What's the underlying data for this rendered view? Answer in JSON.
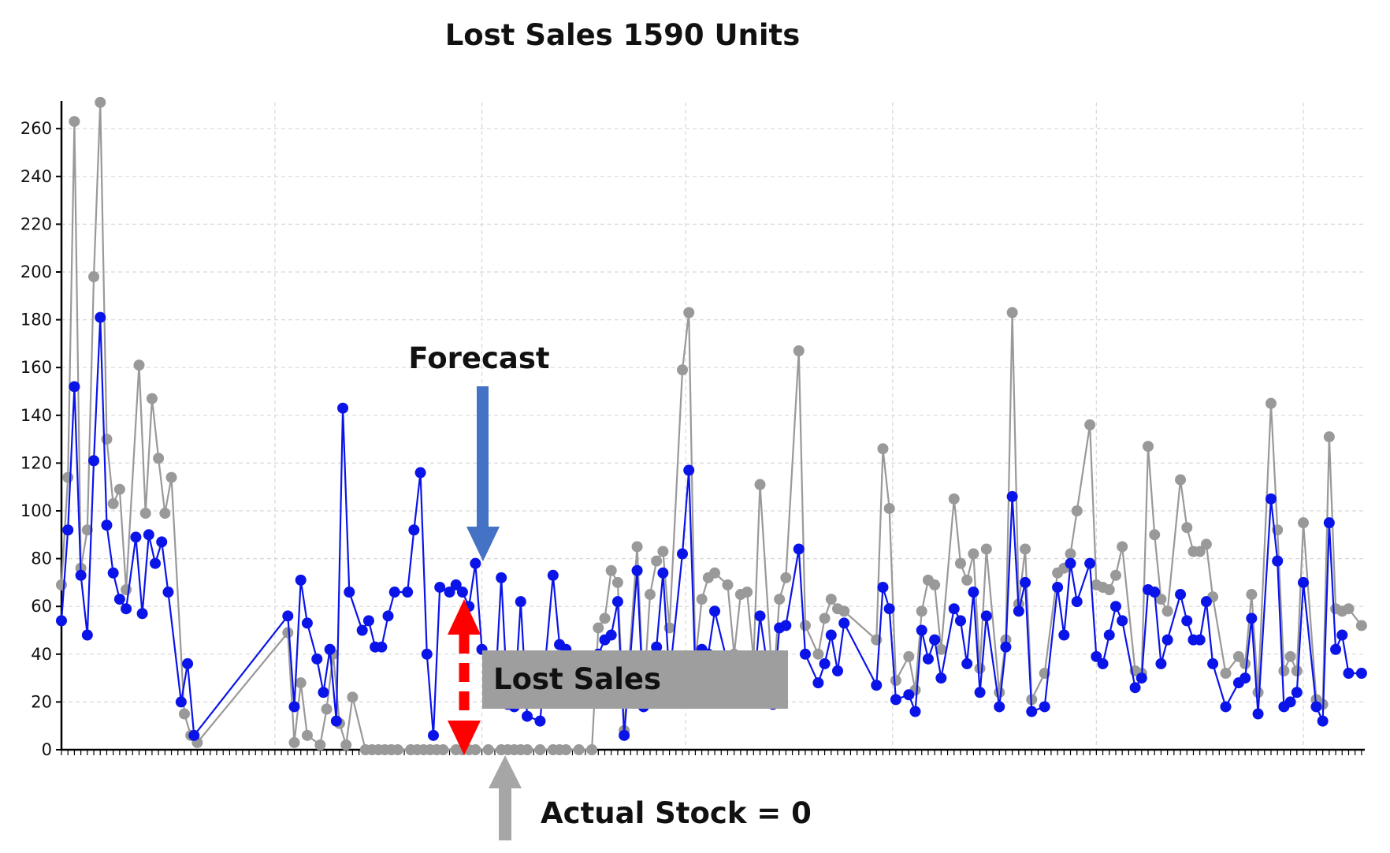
{
  "chart_data": {
    "type": "line",
    "title": "Lost Sales 1590 Units",
    "xlabel": "",
    "ylabel": "",
    "ylim": [
      0,
      270
    ],
    "yticks": [
      0,
      20,
      40,
      60,
      80,
      100,
      120,
      140,
      160,
      180,
      200,
      220,
      240,
      260
    ],
    "grid": true,
    "series": [
      {
        "color": "#0a14e8",
        "points": [
          [
            0,
            54
          ],
          [
            2,
            92
          ],
          [
            4,
            152
          ],
          [
            6,
            73
          ],
          [
            8,
            48
          ],
          [
            10,
            121
          ],
          [
            12,
            181
          ],
          [
            14,
            94
          ],
          [
            16,
            74
          ],
          [
            18,
            63
          ],
          [
            20,
            59
          ],
          [
            23,
            89
          ],
          [
            25,
            57
          ],
          [
            27,
            90
          ],
          [
            29,
            78
          ],
          [
            31,
            87
          ],
          [
            33,
            66
          ],
          [
            37,
            20
          ],
          [
            39,
            36
          ],
          [
            41,
            6
          ],
          [
            70,
            56
          ],
          [
            72,
            18
          ],
          [
            74,
            71
          ],
          [
            76,
            53
          ],
          [
            79,
            38
          ],
          [
            81,
            24
          ],
          [
            83,
            42
          ],
          [
            85,
            12
          ],
          [
            87,
            143
          ],
          [
            89,
            66
          ],
          [
            93,
            50
          ],
          [
            95,
            54
          ],
          [
            97,
            43
          ],
          [
            99,
            43
          ],
          [
            101,
            56
          ],
          [
            103,
            66
          ],
          [
            107,
            66
          ],
          [
            109,
            92
          ],
          [
            111,
            116
          ],
          [
            113,
            40
          ],
          [
            115,
            6
          ],
          [
            117,
            68
          ],
          [
            120,
            66
          ],
          [
            122,
            69
          ],
          [
            124,
            66
          ],
          [
            126,
            60
          ],
          [
            128,
            78
          ],
          [
            130,
            42
          ],
          [
            134,
            22
          ],
          [
            136,
            72
          ],
          [
            138,
            19
          ],
          [
            140,
            18
          ],
          [
            142,
            62
          ],
          [
            144,
            14
          ],
          [
            148,
            12
          ],
          [
            152,
            73
          ],
          [
            154,
            44
          ],
          [
            156,
            42
          ],
          [
            158,
            36
          ],
          [
            162,
            26
          ],
          [
            166,
            40
          ],
          [
            168,
            46
          ],
          [
            170,
            48
          ],
          [
            172,
            62
          ],
          [
            174,
            6
          ],
          [
            178,
            75
          ],
          [
            180,
            18
          ],
          [
            182,
            36
          ],
          [
            184,
            43
          ],
          [
            186,
            74
          ],
          [
            188,
            30
          ],
          [
            192,
            82
          ],
          [
            194,
            117
          ],
          [
            196,
            32
          ],
          [
            198,
            42
          ],
          [
            200,
            40
          ],
          [
            202,
            58
          ],
          [
            206,
            36
          ],
          [
            208,
            26
          ],
          [
            210,
            36
          ],
          [
            212,
            36
          ],
          [
            214,
            24
          ],
          [
            216,
            56
          ],
          [
            220,
            19
          ],
          [
            222,
            51
          ],
          [
            224,
            52
          ],
          [
            228,
            84
          ],
          [
            230,
            40
          ],
          [
            234,
            28
          ],
          [
            236,
            36
          ],
          [
            238,
            48
          ],
          [
            240,
            33
          ],
          [
            242,
            53
          ],
          [
            252,
            27
          ],
          [
            254,
            68
          ],
          [
            256,
            59
          ],
          [
            258,
            21
          ],
          [
            262,
            23
          ],
          [
            264,
            16
          ],
          [
            266,
            50
          ],
          [
            268,
            38
          ],
          [
            270,
            46
          ],
          [
            272,
            30
          ],
          [
            276,
            59
          ],
          [
            278,
            54
          ],
          [
            280,
            36
          ],
          [
            282,
            66
          ],
          [
            284,
            24
          ],
          [
            286,
            56
          ],
          [
            290,
            18
          ],
          [
            292,
            43
          ],
          [
            294,
            106
          ],
          [
            296,
            58
          ],
          [
            298,
            70
          ],
          [
            300,
            16
          ],
          [
            304,
            18
          ],
          [
            308,
            68
          ],
          [
            310,
            48
          ],
          [
            312,
            78
          ],
          [
            314,
            62
          ],
          [
            318,
            78
          ],
          [
            320,
            39
          ],
          [
            322,
            36
          ],
          [
            324,
            48
          ],
          [
            326,
            60
          ],
          [
            328,
            54
          ],
          [
            332,
            26
          ],
          [
            334,
            30
          ],
          [
            336,
            67
          ],
          [
            338,
            66
          ],
          [
            340,
            36
          ],
          [
            342,
            46
          ],
          [
            346,
            65
          ],
          [
            348,
            54
          ],
          [
            350,
            46
          ],
          [
            352,
            46
          ],
          [
            354,
            62
          ],
          [
            356,
            36
          ],
          [
            360,
            18
          ],
          [
            364,
            28
          ],
          [
            366,
            30
          ],
          [
            368,
            55
          ],
          [
            370,
            15
          ],
          [
            374,
            105
          ],
          [
            376,
            79
          ],
          [
            378,
            18
          ],
          [
            380,
            20
          ],
          [
            382,
            24
          ],
          [
            384,
            70
          ],
          [
            388,
            18
          ],
          [
            390,
            12
          ],
          [
            392,
            95
          ],
          [
            394,
            42
          ],
          [
            396,
            48
          ],
          [
            398,
            32
          ],
          [
            402,
            32
          ]
        ]
      },
      {
        "color": "#999999",
        "points": [
          [
            0,
            69
          ],
          [
            2,
            114
          ],
          [
            4,
            263
          ],
          [
            6,
            76
          ],
          [
            8,
            92
          ],
          [
            10,
            198
          ],
          [
            12,
            271
          ],
          [
            14,
            130
          ],
          [
            16,
            103
          ],
          [
            18,
            109
          ],
          [
            20,
            67
          ],
          [
            24,
            161
          ],
          [
            26,
            99
          ],
          [
            28,
            147
          ],
          [
            30,
            122
          ],
          [
            32,
            99
          ],
          [
            34,
            114
          ],
          [
            38,
            15
          ],
          [
            40,
            6
          ],
          [
            42,
            3
          ],
          [
            70,
            49
          ],
          [
            72,
            3
          ],
          [
            74,
            28
          ],
          [
            76,
            6
          ],
          [
            80,
            2
          ],
          [
            82,
            17
          ],
          [
            84,
            40
          ],
          [
            86,
            11
          ],
          [
            88,
            2
          ],
          [
            90,
            22
          ],
          [
            94,
            0
          ],
          [
            96,
            0
          ],
          [
            98,
            0
          ],
          [
            100,
            0
          ],
          [
            102,
            0
          ],
          [
            104,
            0
          ],
          [
            108,
            0
          ],
          [
            110,
            0
          ],
          [
            112,
            0
          ],
          [
            114,
            0
          ],
          [
            116,
            0
          ],
          [
            118,
            0
          ],
          [
            122,
            0
          ],
          [
            124,
            0
          ],
          [
            126,
            0
          ],
          [
            128,
            0
          ],
          [
            132,
            0
          ],
          [
            136,
            0
          ],
          [
            138,
            0
          ],
          [
            140,
            0
          ],
          [
            142,
            0
          ],
          [
            144,
            0
          ],
          [
            148,
            0
          ],
          [
            152,
            0
          ],
          [
            154,
            0
          ],
          [
            156,
            0
          ],
          [
            160,
            0
          ],
          [
            164,
            0
          ],
          [
            166,
            51
          ],
          [
            168,
            55
          ],
          [
            170,
            75
          ],
          [
            172,
            70
          ],
          [
            174,
            8
          ],
          [
            178,
            85
          ],
          [
            180,
            22
          ],
          [
            182,
            65
          ],
          [
            184,
            79
          ],
          [
            186,
            83
          ],
          [
            188,
            51
          ],
          [
            192,
            159
          ],
          [
            194,
            183
          ],
          [
            196,
            37
          ],
          [
            198,
            63
          ],
          [
            200,
            72
          ],
          [
            202,
            74
          ],
          [
            206,
            69
          ],
          [
            208,
            40
          ],
          [
            210,
            65
          ],
          [
            212,
            66
          ],
          [
            214,
            38
          ],
          [
            216,
            111
          ],
          [
            220,
            25
          ],
          [
            222,
            63
          ],
          [
            224,
            72
          ],
          [
            228,
            167
          ],
          [
            230,
            52
          ],
          [
            234,
            40
          ],
          [
            236,
            55
          ],
          [
            238,
            63
          ],
          [
            240,
            59
          ],
          [
            242,
            58
          ],
          [
            252,
            46
          ],
          [
            254,
            126
          ],
          [
            256,
            101
          ],
          [
            258,
            29
          ],
          [
            262,
            39
          ],
          [
            264,
            25
          ],
          [
            266,
            58
          ],
          [
            268,
            71
          ],
          [
            270,
            69
          ],
          [
            272,
            42
          ],
          [
            276,
            105
          ],
          [
            278,
            78
          ],
          [
            280,
            71
          ],
          [
            282,
            82
          ],
          [
            284,
            34
          ],
          [
            286,
            84
          ],
          [
            290,
            24
          ],
          [
            292,
            46
          ],
          [
            294,
            183
          ],
          [
            296,
            61
          ],
          [
            298,
            84
          ],
          [
            300,
            21
          ],
          [
            304,
            32
          ],
          [
            308,
            74
          ],
          [
            310,
            76
          ],
          [
            312,
            82
          ],
          [
            314,
            100
          ],
          [
            318,
            136
          ],
          [
            320,
            69
          ],
          [
            322,
            68
          ],
          [
            324,
            67
          ],
          [
            326,
            73
          ],
          [
            328,
            85
          ],
          [
            332,
            33
          ],
          [
            334,
            32
          ],
          [
            336,
            127
          ],
          [
            338,
            90
          ],
          [
            340,
            63
          ],
          [
            342,
            58
          ],
          [
            346,
            113
          ],
          [
            348,
            93
          ],
          [
            350,
            83
          ],
          [
            352,
            83
          ],
          [
            354,
            86
          ],
          [
            356,
            64
          ],
          [
            360,
            32
          ],
          [
            364,
            39
          ],
          [
            366,
            36
          ],
          [
            368,
            65
          ],
          [
            370,
            24
          ],
          [
            374,
            145
          ],
          [
            376,
            92
          ],
          [
            378,
            33
          ],
          [
            380,
            39
          ],
          [
            382,
            33
          ],
          [
            384,
            95
          ],
          [
            388,
            21
          ],
          [
            390,
            19
          ],
          [
            392,
            131
          ],
          [
            394,
            59
          ],
          [
            396,
            58
          ],
          [
            398,
            59
          ],
          [
            402,
            52
          ]
        ]
      }
    ],
    "annotations": [
      {
        "text": "Forecast",
        "arrow": "down",
        "arrow_color": "#4472c4"
      },
      {
        "text": "Lost Sales",
        "box_color": "#9e9e9e"
      },
      {
        "text": "Actual Stock = 0",
        "arrow": "up",
        "arrow_color": "#a6a6a6"
      },
      {
        "arrow": "double-dashed",
        "arrow_color": "#ff0000"
      }
    ]
  }
}
